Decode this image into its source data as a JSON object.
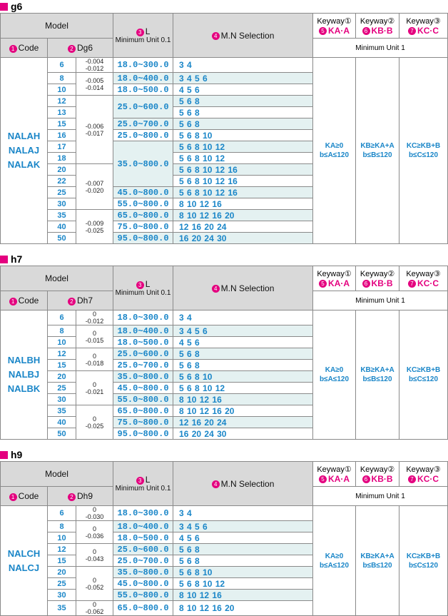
{
  "sections": [
    {
      "title": "g6",
      "model": "Model",
      "num_code": "1",
      "code_label": "Code",
      "num_d": "2",
      "d_label": "Dg6",
      "num_l": "3",
      "l_label": "L",
      "l_unit": "Minimum Unit 0.1",
      "num_mn": "4",
      "mn_label": "M.N Selection",
      "keyway_unit": "Minimum Unit 1",
      "keyways": [
        {
          "label": "Keyway①",
          "num": "5",
          "type": "KA·A",
          "cond": [
            "KA≥0",
            "b≤A≤120"
          ]
        },
        {
          "label": "Keyway②",
          "num": "6",
          "type": "KB·B",
          "cond": [
            "KB≥KA+A",
            "b≤B≤120"
          ]
        },
        {
          "label": "Keyway③",
          "num": "7",
          "type": "KC·C",
          "cond": [
            "KC≥KB+B",
            "b≤C≤120"
          ]
        }
      ],
      "codes": [
        "NALAH",
        "NALAJ",
        "NALAK"
      ],
      "rows": [
        {
          "d": "6",
          "tol": [
            "-0.004",
            "-0.012"
          ],
          "l": "18.0~300.0",
          "mn": "3 4"
        },
        {
          "d": "8",
          "tol": [
            "-0.005",
            "-0.014"
          ],
          "l": "18.0~400.0",
          "mn": "3 4 5 6"
        },
        {
          "d": "10",
          "l": "18.0~500.0",
          "mn": "4 5 6"
        },
        {
          "d": "12",
          "tol": [
            "-0.006",
            "-0.017"
          ],
          "l": "25.0~600.0",
          "mn": "5 6 8"
        },
        {
          "d": "13",
          "mn": "5 6 8"
        },
        {
          "d": "15",
          "l": "25.0~700.0",
          "mn": "5 6 8"
        },
        {
          "d": "16",
          "l": "25.0~800.0",
          "mn": "5 6 8 10"
        },
        {
          "d": "17",
          "l": "35.0~800.0",
          "mn": "5 6 8 10 12"
        },
        {
          "d": "18",
          "mn": "5 6 8 10 12"
        },
        {
          "d": "20",
          "tol": [
            "-0.007",
            "-0.020"
          ],
          "mn": "5 6 8 10 12 16"
        },
        {
          "d": "22",
          "mn": "5 6 8 10 12 16"
        },
        {
          "d": "25",
          "l": "45.0~800.0",
          "mn": "5 6 8 10 12 16"
        },
        {
          "d": "30",
          "l": "55.0~800.0",
          "mn": "8 10 12 16"
        },
        {
          "d": "35",
          "tol": [
            "-0.009",
            "-0.025"
          ],
          "l": "65.0~800.0",
          "mn": "8 10 12 16 20"
        },
        {
          "d": "40",
          "l": "75.0~800.0",
          "mn": "12 16 20 24"
        },
        {
          "d": "50",
          "l": "95.0~800.0",
          "mn": "16 20 24 30"
        }
      ]
    },
    {
      "title": "h7",
      "model": "Model",
      "num_code": "1",
      "code_label": "Code",
      "num_d": "2",
      "d_label": "Dh7",
      "num_l": "3",
      "l_label": "L",
      "l_unit": "Minimum Unit 0.1",
      "num_mn": "4",
      "mn_label": "M.N Selection",
      "keyway_unit": "Minimum Unit 1",
      "keyways": [
        {
          "label": "Keyway①",
          "num": "5",
          "type": "KA·A",
          "cond": [
            "KA≥0",
            "b≤A≤120"
          ]
        },
        {
          "label": "Keyway②",
          "num": "6",
          "type": "KB·B",
          "cond": [
            "KB≥KA+A",
            "b≤B≤120"
          ]
        },
        {
          "label": "Keyway③",
          "num": "7",
          "type": "KC·C",
          "cond": [
            "KC≥KB+B",
            "b≤C≤120"
          ]
        }
      ],
      "codes": [
        "NALBH",
        "NALBJ",
        "NALBK"
      ],
      "rows": [
        {
          "d": "6",
          "tol": [
            "0",
            "-0.012"
          ],
          "l": "18.0~300.0",
          "mn": "3 4"
        },
        {
          "d": "8",
          "tol": [
            "0",
            "-0.015"
          ],
          "l": "18.0~400.0",
          "mn": "3 4 5 6"
        },
        {
          "d": "10",
          "l": "18.0~500.0",
          "mn": "4 5 6"
        },
        {
          "d": "12",
          "tol": [
            "0",
            "-0.018"
          ],
          "l": "25.0~600.0",
          "mn": "5 6 8"
        },
        {
          "d": "15",
          "l": "25.0~700.0",
          "mn": "5 6 8"
        },
        {
          "d": "20",
          "tol": [
            "0",
            "-0.021"
          ],
          "l": "35.0~800.0",
          "mn": "5 6 8 10"
        },
        {
          "d": "25",
          "l": "45.0~800.0",
          "mn": "5 6 8 10 12"
        },
        {
          "d": "30",
          "l": "55.0~800.0",
          "mn": "8 10 12 16"
        },
        {
          "d": "35",
          "tol": [
            "0",
            "-0.025"
          ],
          "l": "65.0~800.0",
          "mn": "8 10 12 16 20"
        },
        {
          "d": "40",
          "l": "75.0~800.0",
          "mn": "12 16 20 24"
        },
        {
          "d": "50",
          "l": "95.0~800.0",
          "mn": "16 20 24 30"
        }
      ]
    },
    {
      "title": "h9",
      "model": "Model",
      "num_code": "1",
      "code_label": "Code",
      "num_d": "2",
      "d_label": "Dh9",
      "num_l": "3",
      "l_label": "L",
      "l_unit": "Minimum Unit 0.1",
      "num_mn": "4",
      "mn_label": "M.N Selection",
      "keyway_unit": "Minimum Unit 1",
      "keyways": [
        {
          "label": "Keyway①",
          "num": "5",
          "type": "KA·A",
          "cond": [
            "KA≥0",
            "b≤A≤120"
          ]
        },
        {
          "label": "Keyway②",
          "num": "6",
          "type": "KB·B",
          "cond": [
            "KB≥KA+A",
            "b≤B≤120"
          ]
        },
        {
          "label": "Keyway③",
          "num": "7",
          "type": "KC·C",
          "cond": [
            "KC≥KB+B",
            "b≤C≤120"
          ]
        }
      ],
      "codes": [
        "NALCH",
        "NALCJ"
      ],
      "rows": [
        {
          "d": "6",
          "tol": [
            "0",
            "-0.030"
          ],
          "l": "18.0~300.0",
          "mn": "3 4"
        },
        {
          "d": "8",
          "tol": [
            "0",
            "-0.036"
          ],
          "l": "18.0~400.0",
          "mn": "3 4 5 6"
        },
        {
          "d": "10",
          "l": "18.0~500.0",
          "mn": "4 5 6"
        },
        {
          "d": "12",
          "tol": [
            "0",
            "-0.043"
          ],
          "l": "25.0~600.0",
          "mn": "5 6 8"
        },
        {
          "d": "15",
          "l": "25.0~700.0",
          "mn": "5 6 8"
        },
        {
          "d": "20",
          "tol": [
            "0",
            "-0.052"
          ],
          "l": "35.0~800.0",
          "mn": "5 6 8 10"
        },
        {
          "d": "25",
          "l": "45.0~800.0",
          "mn": "5 6 8 10 12"
        },
        {
          "d": "30",
          "l": "55.0~800.0",
          "mn": "8 10 12 16"
        },
        {
          "d": "35",
          "tol": [
            "0",
            "-0.062"
          ],
          "l": "65.0~800.0",
          "mn": "8 10 12 16 20"
        }
      ]
    }
  ]
}
